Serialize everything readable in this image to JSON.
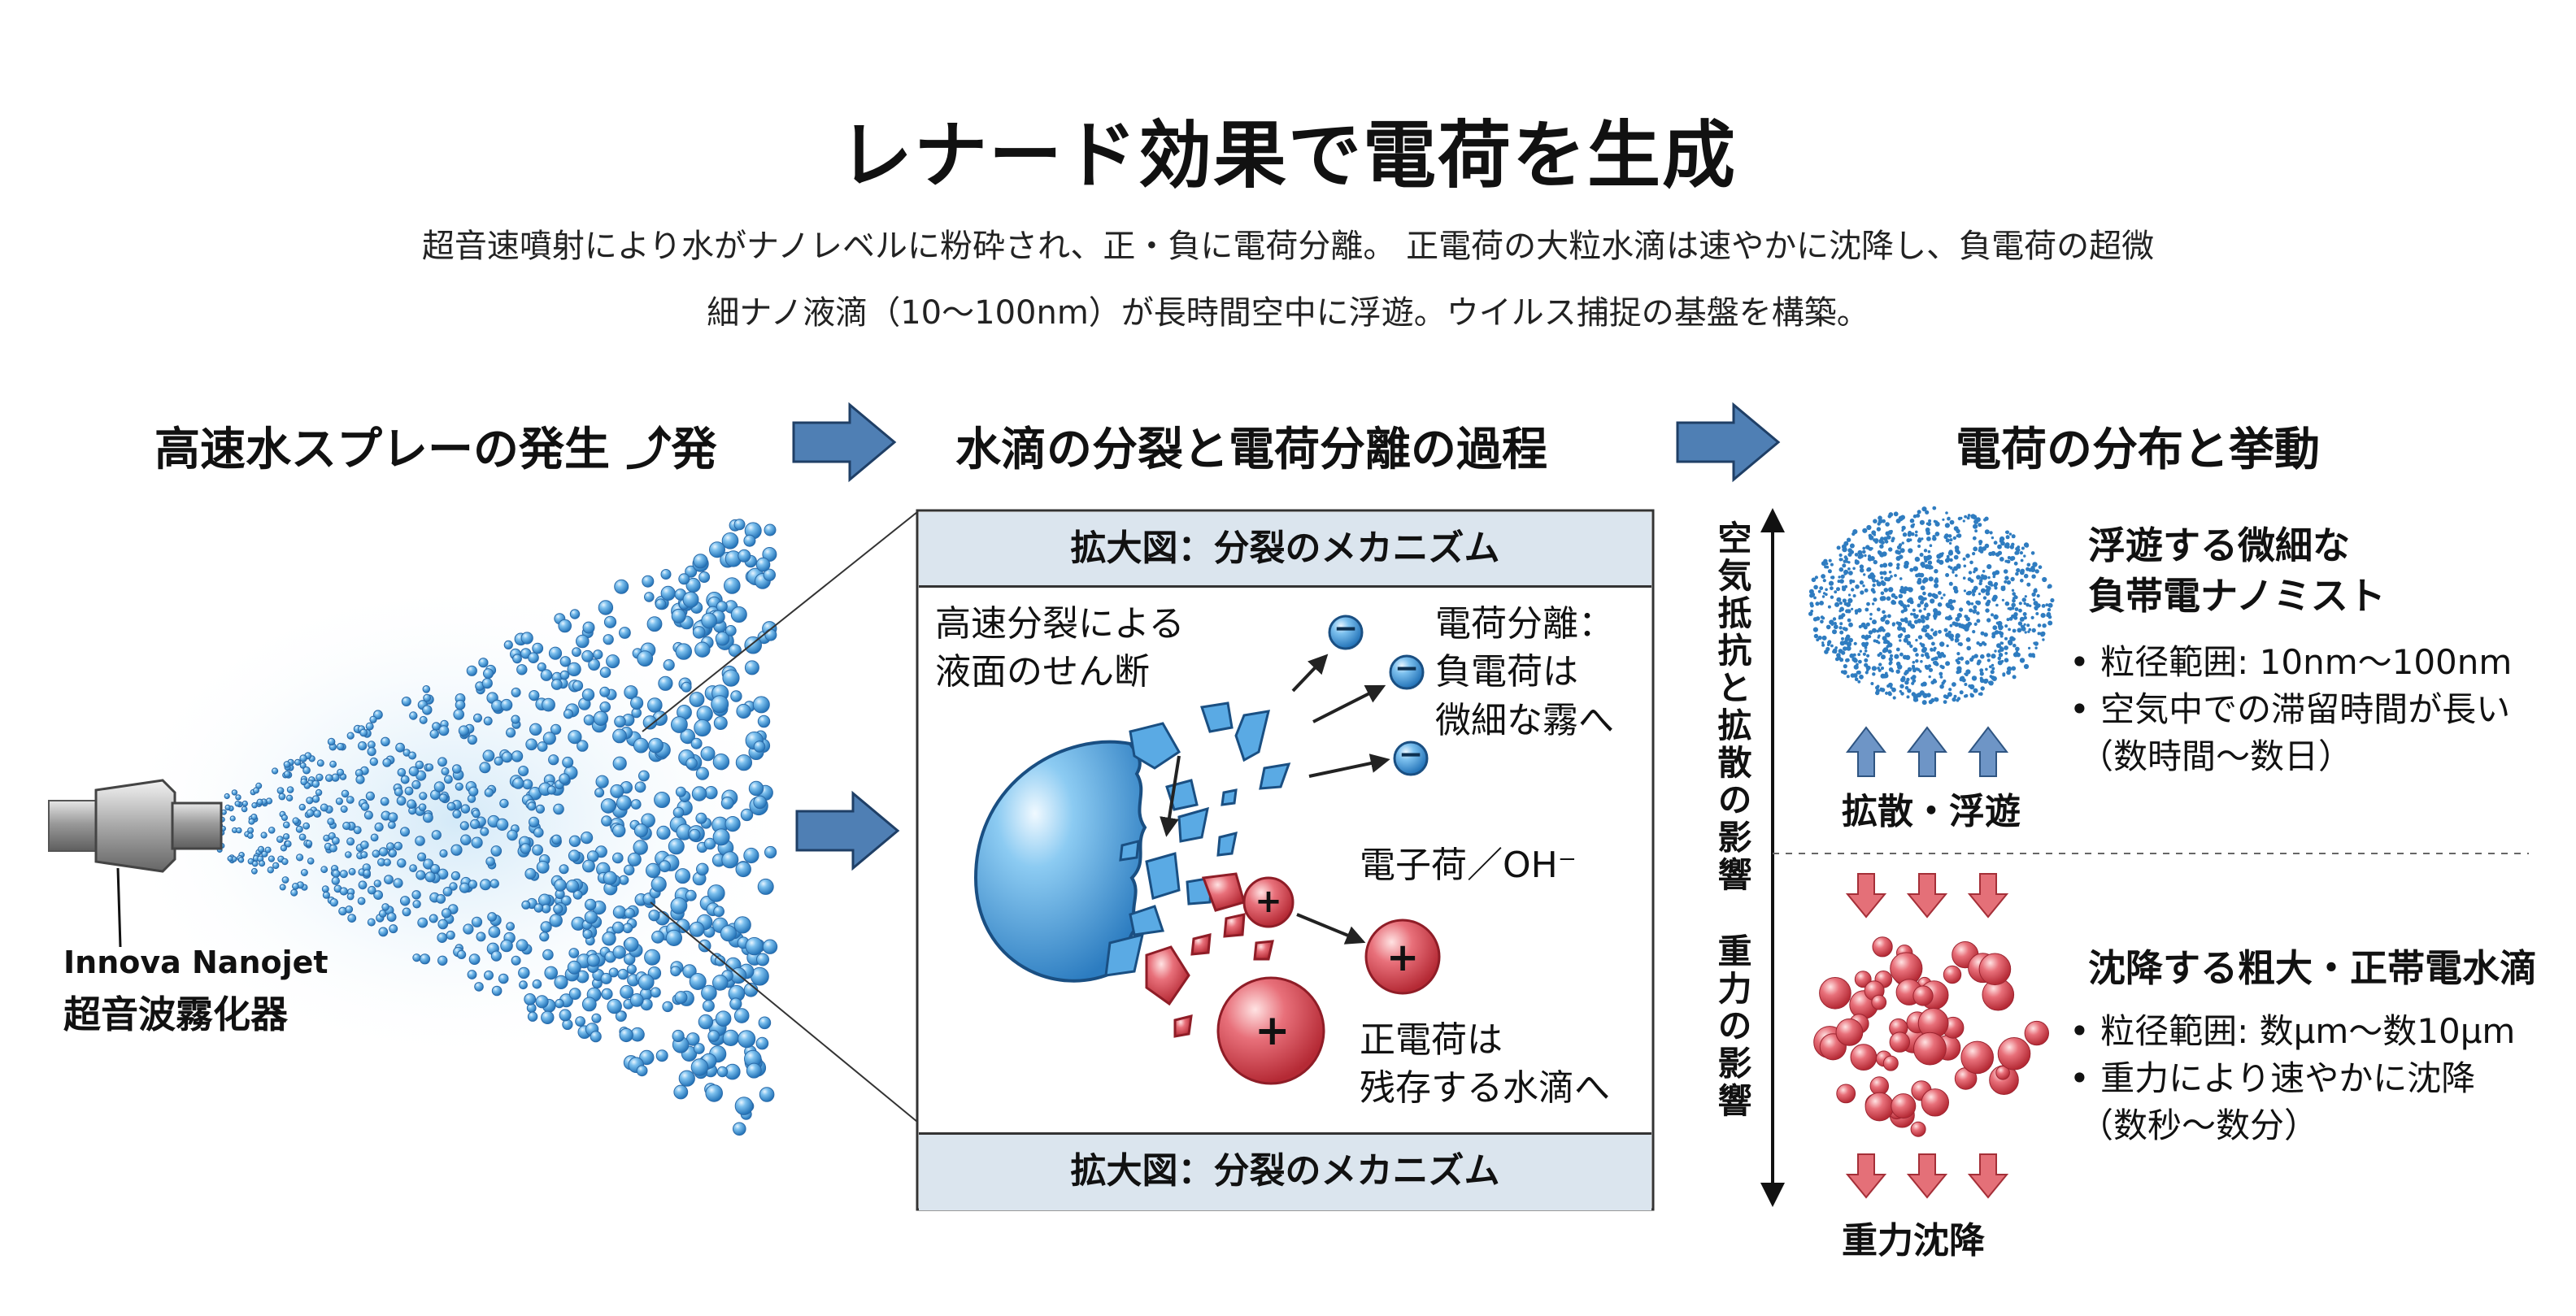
{
  "title": "レナード効果で電荷を生成",
  "subtitle": {
    "line1": "超音速噴射により水がナノレベルに粉砕され、正・負に電荷分離。 正電荷の大粒水滴は速やかに沈降し、負電荷の超微",
    "line2": "細ナノ液滴（10〜100nm）が長時間空中に浮遊。ウイルス捕捉の基盤を構築。"
  },
  "sections": {
    "spray": "高速水スプレーの発生 ⤴発",
    "split": "水滴の分裂と電荷分離の過程",
    "distribution": "電荷の分布と挙動"
  },
  "device": {
    "brand": "Innova Nanojet",
    "name": "超音波霧化器"
  },
  "zoom_panel": {
    "header_top": "拡大図：分裂のメカニズム",
    "header_bottom": "拡大図：分裂のメカニズム",
    "shear_label": [
      "高速分裂による",
      "液面のせん断"
    ],
    "neg_label": [
      "電荷分離：",
      "負電荷は",
      "微細な霧へ"
    ],
    "electron_label": "電子荷／OH⁻",
    "pos_label": [
      "正電荷は",
      "残存する水滴へ"
    ],
    "neg_symbol": "−",
    "pos_symbol": "+"
  },
  "distribution": {
    "axis_upper": "空気抵抗と拡散の影響",
    "axis_lower": "重力の影響",
    "upper": {
      "heading": [
        "浮遊する微細な",
        "負帯電ナノミスト"
      ],
      "bullets": [
        "• 粒径範囲: 10nm〜100nm",
        "• 空気中での滞留時間が長い",
        "（数時間〜数日）"
      ],
      "caption": "拡散・浮遊"
    },
    "lower": {
      "heading": "沈降する粗大・正帯電水滴",
      "bullets": [
        "• 粒径範囲: 数μm〜数10μm",
        "• 重力により速やかに沈降",
        "（数秒〜数分）"
      ],
      "caption": "重力沈降"
    }
  },
  "colors": {
    "accent_arrow": "#4f7fb4",
    "droplet_blue": "#3a8fd6",
    "droplet_red": "#d8404a",
    "panel_header": "#dbe5ee"
  }
}
